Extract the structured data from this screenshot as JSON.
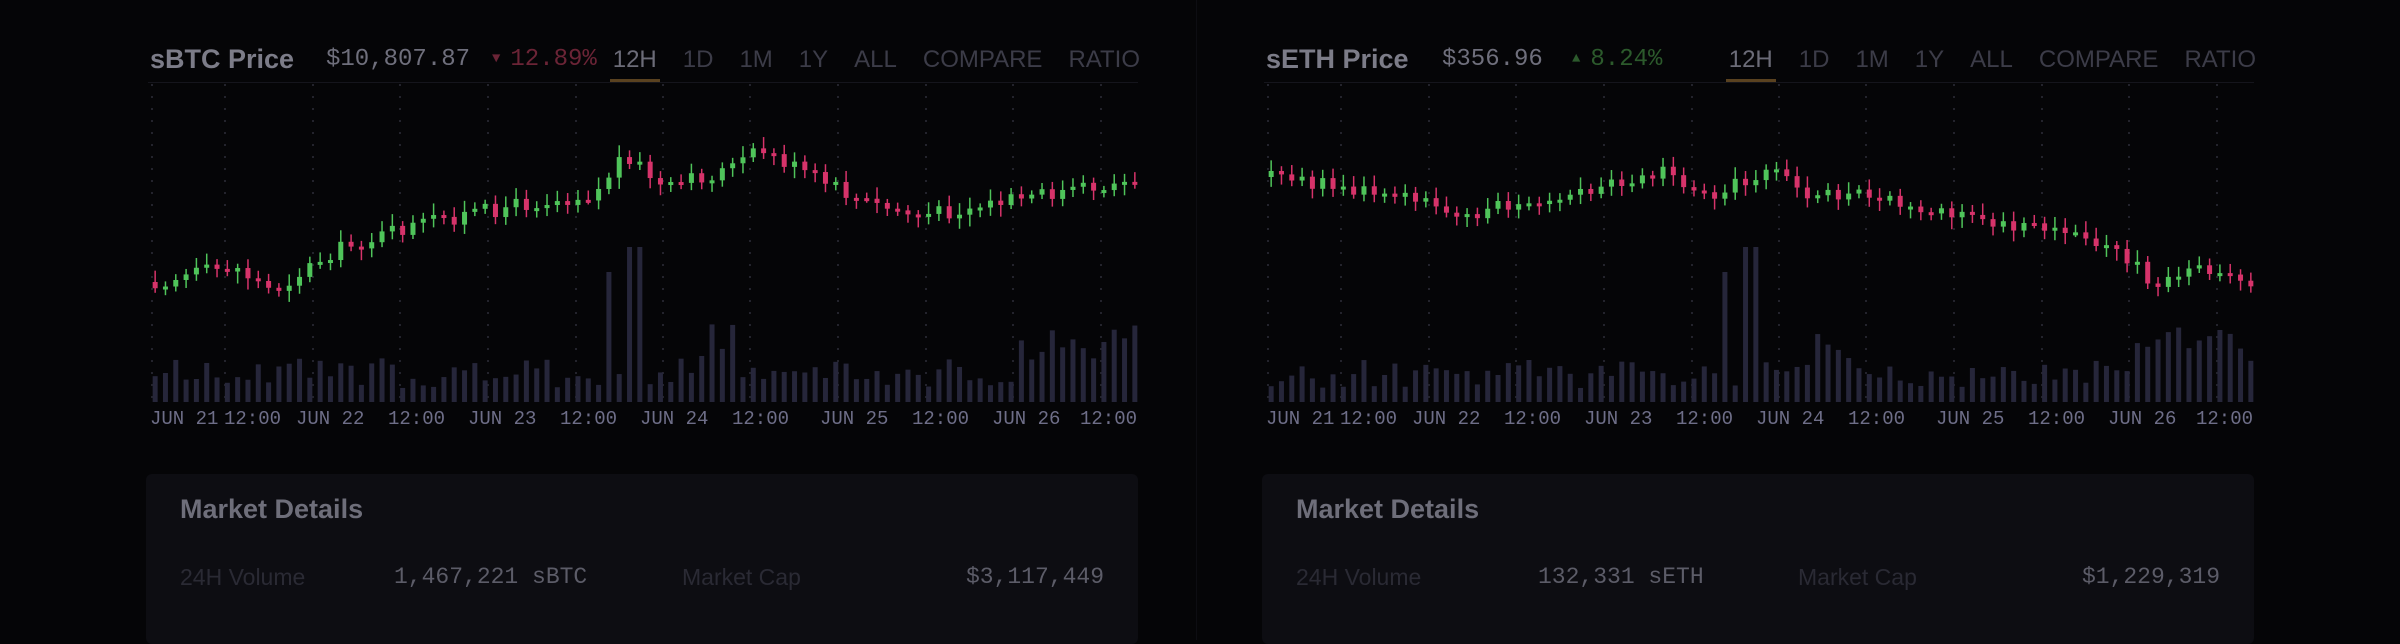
{
  "panels": [
    {
      "title": "sBTC Price",
      "price": "$10,807.87",
      "change": "12.89%",
      "change_arrow": "▼",
      "change_color": "#6b2436",
      "tabs": [
        "12H",
        "1D",
        "1M",
        "1Y",
        "ALL",
        "COMPARE",
        "RATIO"
      ],
      "active_tab": "12H",
      "x_labels": [
        "JUN 21",
        "12:00",
        "JUN 22",
        "12:00",
        "JUN 23",
        "12:00",
        "JUN 24",
        "12:00",
        "JUN 25",
        "12:00",
        "JUN 26",
        "12:00"
      ],
      "market": {
        "title": "Market Details",
        "volume_label": "24H Volume",
        "volume_value": "1,467,221 sBTC",
        "cap_label": "Market Cap",
        "cap_value": "$3,117,449"
      }
    },
    {
      "title": "sETH Price",
      "price": "$356.96",
      "change": "8.24%",
      "change_arrow": "▲",
      "change_color": "#2c5a2c",
      "tabs": [
        "12H",
        "1D",
        "1M",
        "1Y",
        "ALL",
        "COMPARE",
        "RATIO"
      ],
      "active_tab": "12H",
      "x_labels": [
        "JUN 21",
        "12:00",
        "JUN 22",
        "12:00",
        "JUN 23",
        "12:00",
        "JUN 24",
        "12:00",
        "JUN 25",
        "12:00",
        "JUN 26",
        "12:00"
      ],
      "market": {
        "title": "Market Details",
        "volume_label": "24H Volume",
        "volume_value": "132,331 sETH",
        "cap_label": "Market Cap",
        "cap_value": "$1,229,319"
      }
    }
  ],
  "colors": {
    "up": "#4fc45a",
    "down": "#d6336a",
    "volume": "#26263a",
    "axis_text": "#6e6e88",
    "grid": "#23232c"
  }
}
